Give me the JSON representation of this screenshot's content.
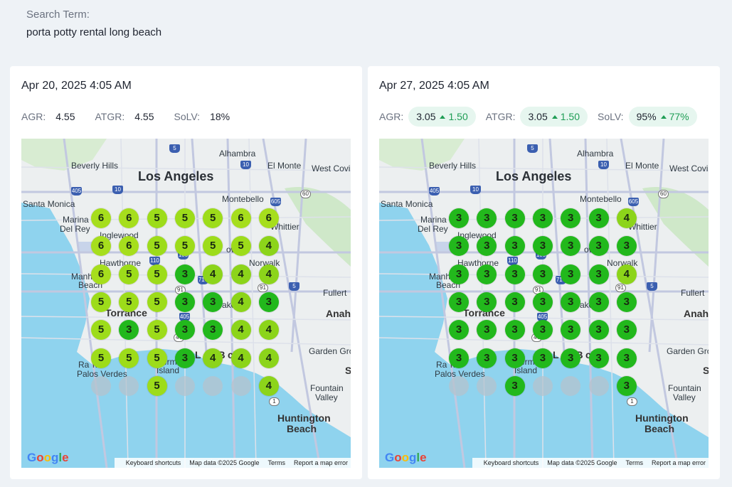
{
  "search": {
    "label": "Search Term:",
    "term": "porta potty rental long beach"
  },
  "cards": [
    {
      "date": "Apr 20, 2025 4:05 AM",
      "metrics": {
        "agr": {
          "name": "AGR:",
          "value": "4.55",
          "delta": ""
        },
        "atgr": {
          "name": "ATGR:",
          "value": "4.55",
          "delta": ""
        },
        "solv": {
          "name": "SoLV:",
          "value": "18%",
          "delta": ""
        }
      },
      "grid": [
        [
          "6",
          "6",
          "5",
          "5",
          "5",
          "6",
          "6"
        ],
        [
          "6",
          "6",
          "5",
          "5",
          "5",
          "5",
          "4"
        ],
        [
          "6",
          "5",
          "5",
          "3",
          "4",
          "4",
          "4"
        ],
        [
          "5",
          "5",
          "5",
          "3",
          "3",
          "4",
          "3"
        ],
        [
          "5",
          "3",
          "5",
          "3",
          "3",
          "4",
          "4"
        ],
        [
          "5",
          "5",
          "5",
          "3",
          "4",
          "4",
          "4"
        ],
        [
          "",
          "",
          "5",
          "",
          "",
          "",
          "4"
        ]
      ]
    },
    {
      "date": "Apr 27, 2025 4:05 AM",
      "metrics": {
        "agr": {
          "name": "AGR:",
          "value": "3.05",
          "delta": "1.50"
        },
        "atgr": {
          "name": "ATGR:",
          "value": "3.05",
          "delta": "1.50"
        },
        "solv": {
          "name": "SoLV:",
          "value": "95%",
          "delta": "77%"
        }
      },
      "grid": [
        [
          "3",
          "3",
          "3",
          "3",
          "3",
          "3",
          "4"
        ],
        [
          "3",
          "3",
          "3",
          "3",
          "3",
          "3",
          "3"
        ],
        [
          "3",
          "3",
          "3",
          "3",
          "3",
          "3",
          "4"
        ],
        [
          "3",
          "3",
          "3",
          "3",
          "3",
          "3",
          "3"
        ],
        [
          "3",
          "3",
          "3",
          "3",
          "3",
          "3",
          "3"
        ],
        [
          "3",
          "3",
          "3",
          "3",
          "3",
          "3",
          "3"
        ],
        [
          "",
          "",
          "3",
          "",
          "",
          "",
          "3"
        ]
      ]
    }
  ],
  "map": {
    "labels": {
      "los_angeles": "Los Angeles",
      "beverly_hills": "Beverly Hills",
      "alhambra": "Alhambra",
      "el_monte": "El Monte",
      "west_covina": "West Covi",
      "santa_monica": "Santa Monica",
      "montebello": "Montebello",
      "marina": "Marina",
      "del_rey": "Del Rey",
      "inglewood": "Inglewood",
      "whittier": "Whittier",
      "hawthorne": "Hawthorne",
      "norwalk": "Norwalk",
      "downey_frag": "ow",
      "manh": "Manh",
      "beach": "Beach",
      "fullerton": "Fullert",
      "torrance": "Torrance",
      "lakewood_frag": "ake",
      "anaheim": "Anah",
      "long_beach_a": "L",
      "long_beach_b": "g B",
      "long_beach_c": "ch",
      "garden_grove": "Garden Gro",
      "rancho": "Ra",
      "rancho2": "ho",
      "palos_verdes": "Palos Verdes",
      "terminal": "Terminal",
      "island": "Island",
      "s_frag": "S",
      "fountain": "Fountain",
      "valley": "Valley",
      "huntington": "Huntington",
      "beach2": "Beach"
    },
    "shields": [
      "5",
      "10",
      "405",
      "10",
      "60",
      "605",
      "110",
      "105",
      "710",
      "91",
      "91",
      "5",
      "405",
      "47",
      "1"
    ],
    "google": "Google",
    "attrib": {
      "keyboard": "Keyboard shortcuts",
      "data": "Map data ©2025 Google",
      "terms": "Terms",
      "report": "Report a map error"
    }
  },
  "colors": {
    "rank3": "#22b81c",
    "rank4": "#8cd41a",
    "rank5": "#9ddc1a",
    "rank6": "#a6de1d"
  }
}
